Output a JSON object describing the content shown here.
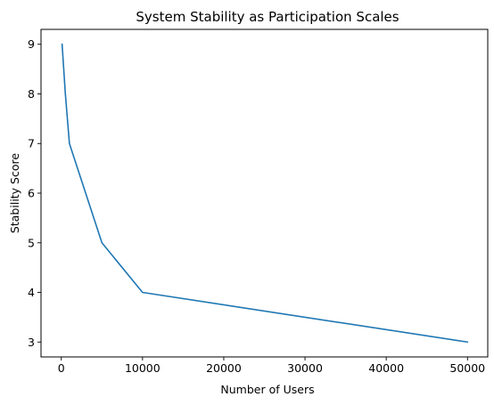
{
  "chart_data": {
    "type": "line",
    "title": "System Stability as Participation Scales",
    "xlabel": "Number of Users",
    "ylabel": "Stability Score",
    "xlim": [
      -2495,
      52495
    ],
    "ylim": [
      2.7,
      9.3
    ],
    "xticks": [
      0,
      10000,
      20000,
      30000,
      40000,
      50000
    ],
    "xtick_labels": [
      "0",
      "10000",
      "20000",
      "30000",
      "40000",
      "50000"
    ],
    "yticks": [
      3,
      4,
      5,
      6,
      7,
      8,
      9
    ],
    "ytick_labels": [
      "3",
      "4",
      "5",
      "6",
      "7",
      "8",
      "9"
    ],
    "grid": false,
    "legend": false,
    "series": [
      {
        "color": "#1f77b4",
        "x": [
          100,
          500,
          1000,
          5000,
          10000,
          50000
        ],
        "y": [
          9,
          8,
          7,
          5,
          4,
          3
        ]
      }
    ]
  }
}
